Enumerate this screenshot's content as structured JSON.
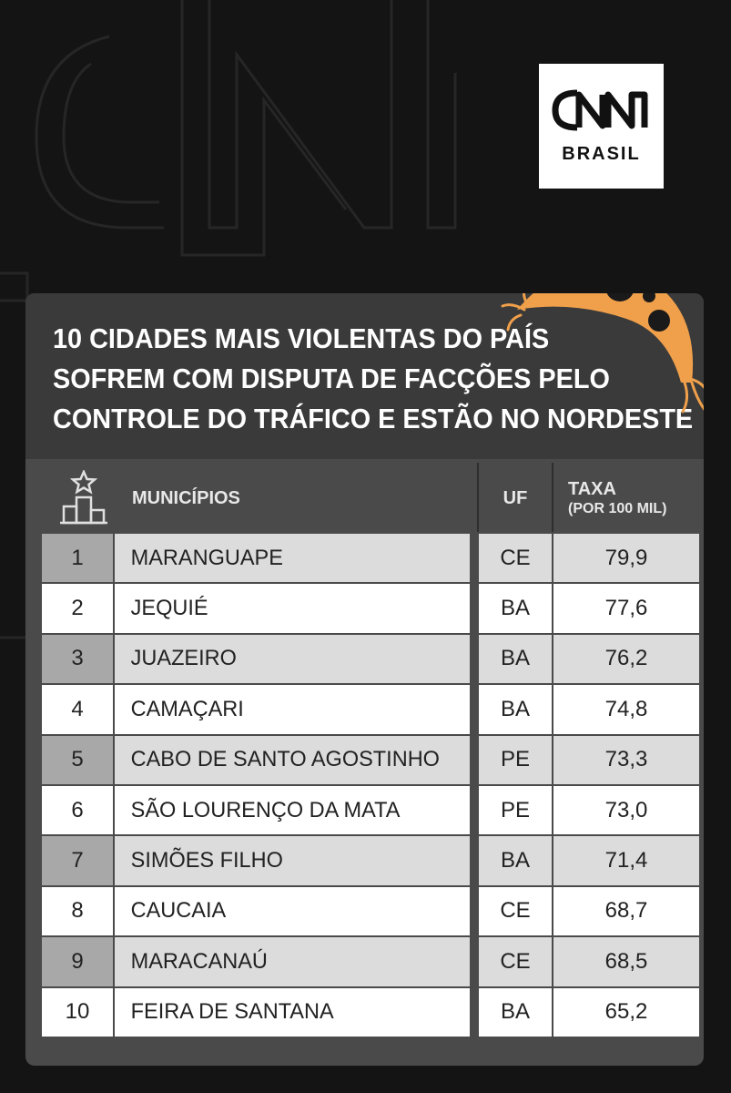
{
  "logo": {
    "name": "CNN",
    "sub": "BRASIL"
  },
  "title_lines": [
    "10 CIDADES MAIS VIOLENTAS DO PAÍS",
    "SOFREM COM DISPUTA DE FACÇÕES PELO",
    "CONTROLE DO TRÁFICO E ESTÃO NO NORDESTE"
  ],
  "icons": {
    "logo": "cnn-logo",
    "podium": "podium-star-icon",
    "decor": "orange-bug-illustration"
  },
  "colors": {
    "accent": "#f0a04b",
    "background": "#141414",
    "card": "#4a4a4a"
  },
  "table": {
    "headers": {
      "municipios": "MUNICÍPIOS",
      "uf": "UF",
      "taxa": "TAXA",
      "taxa_sub": "(POR 100 MIL)"
    },
    "rows": [
      {
        "rank": "1",
        "municipio": "MARANGUAPE",
        "uf": "CE",
        "taxa": "79,9"
      },
      {
        "rank": "2",
        "municipio": "JEQUIÉ",
        "uf": "BA",
        "taxa": "77,6"
      },
      {
        "rank": "3",
        "municipio": "JUAZEIRO",
        "uf": "BA",
        "taxa": "76,2"
      },
      {
        "rank": "4",
        "municipio": "CAMAÇARI",
        "uf": "BA",
        "taxa": "74,8"
      },
      {
        "rank": "5",
        "municipio": "CABO DE SANTO AGOSTINHO",
        "uf": "PE",
        "taxa": "73,3"
      },
      {
        "rank": "6",
        "municipio": "SÃO LOURENÇO DA MATA",
        "uf": "PE",
        "taxa": "73,0"
      },
      {
        "rank": "7",
        "municipio": "SIMÕES FILHO",
        "uf": "BA",
        "taxa": "71,4"
      },
      {
        "rank": "8",
        "municipio": "CAUCAIA",
        "uf": "CE",
        "taxa": "68,7"
      },
      {
        "rank": "9",
        "municipio": "MARACANAÚ",
        "uf": "CE",
        "taxa": "68,5"
      },
      {
        "rank": "10",
        "municipio": "FEIRA DE SANTANA",
        "uf": "BA",
        "taxa": "65,2"
      }
    ]
  }
}
